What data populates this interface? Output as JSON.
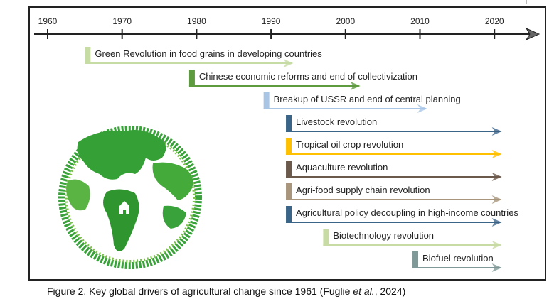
{
  "axis": {
    "years": [
      1960,
      1970,
      1980,
      1990,
      2000,
      2010,
      2020
    ],
    "range": [
      1958,
      2025
    ]
  },
  "drivers": [
    {
      "label": "Green Revolution in food grains in developing countries",
      "start": 1965,
      "end": 1993,
      "color": "#c6dca4"
    },
    {
      "label": "Chinese economic reforms and end of collectivization",
      "start": 1979,
      "end": 2002,
      "color": "#5e9a3e"
    },
    {
      "label": "Breakup of USSR and end of central planning",
      "start": 1989,
      "end": 2011,
      "color": "#a9c5e6"
    },
    {
      "label": "Livestock revolution",
      "start": 1992,
      "end": 2021,
      "color": "#3b6489"
    },
    {
      "label": "Tropical oil crop revolution",
      "start": 1992,
      "end": 2021,
      "color": "#ffc000"
    },
    {
      "label": "Aquaculture revolution",
      "start": 1992,
      "end": 2021,
      "color": "#6b5a4c"
    },
    {
      "label": "Agri-food supply chain revolution",
      "start": 1992,
      "end": 2021,
      "color": "#a8957b"
    },
    {
      "label": "Agricultural policy decoupling in high-income countries",
      "start": 1992,
      "end": 2021,
      "color": "#3b6489"
    },
    {
      "label": "Biotechnology revolution",
      "start": 1997,
      "end": 2021,
      "color": "#c8dba4"
    },
    {
      "label": "Biofuel revolution",
      "start": 2009,
      "end": 2021,
      "color": "#7f9898"
    }
  ],
  "caption": {
    "before": "Figure 2. Key global drivers of agricultural change since 1961 (Fuglie ",
    "italic": "et al.",
    "after": ", 2024)"
  }
}
